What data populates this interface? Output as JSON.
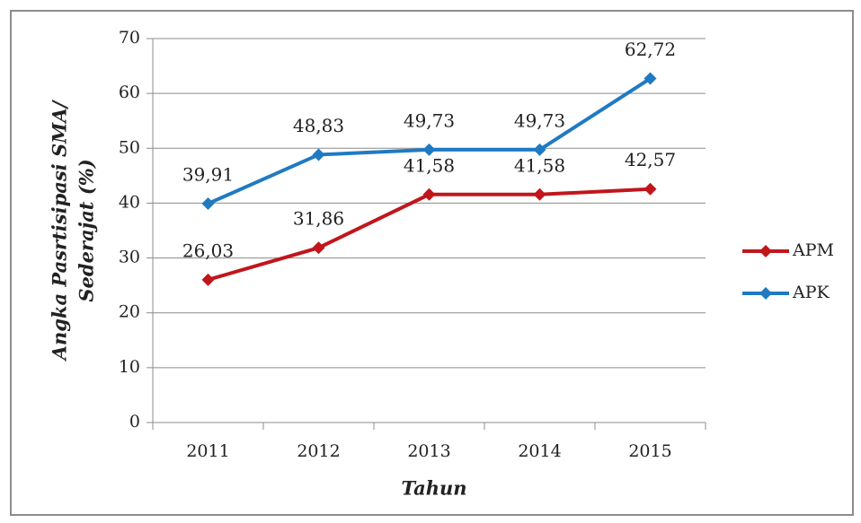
{
  "chart_data": {
    "type": "line",
    "xlabel": "Tahun",
    "ylabel": [
      "Angka Pasrtisipasi SMA/",
      "Sederajat (%)"
    ],
    "categories": [
      "2011",
      "2012",
      "2013",
      "2014",
      "2015"
    ],
    "series": [
      {
        "name": "APM",
        "color": "#c0161c",
        "values": [
          26.03,
          31.86,
          41.58,
          41.58,
          42.57
        ],
        "value_labels": [
          "26,03",
          "31,86",
          "41,58",
          "41,58",
          "42,57"
        ]
      },
      {
        "name": "APK",
        "color": "#1f7ac2",
        "values": [
          39.91,
          48.83,
          49.73,
          49.73,
          62.72
        ],
        "value_labels": [
          "39,91",
          "48,83",
          "49,73",
          "49,73",
          "62,72"
        ]
      }
    ],
    "ylim": [
      0,
      70
    ],
    "yticks": [
      0,
      10,
      20,
      30,
      40,
      50,
      60,
      70
    ],
    "grid": true,
    "legend": "right"
  }
}
